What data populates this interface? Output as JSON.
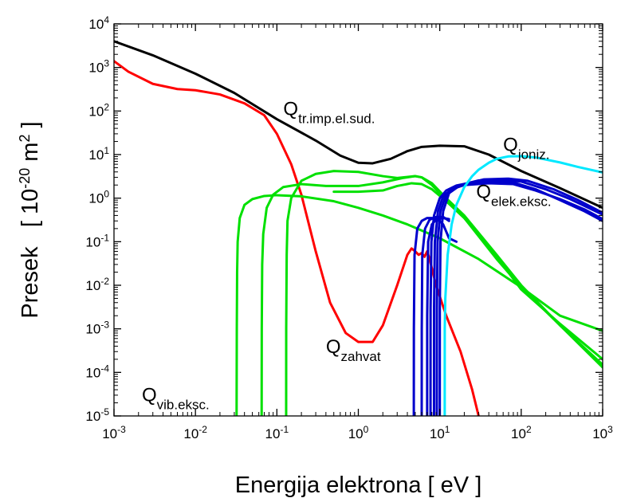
{
  "chart_data": {
    "type": "line",
    "xlabel": "Energija elektrona   [ eV ]",
    "ylabel": "Presek   [ 10^-20 m^2 ]",
    "ylabel_parts": {
      "main": "Presek",
      "open": "[ 10",
      "exp": "-20",
      "unit": " m",
      "unit_exp": "2",
      "close": " ]"
    },
    "x_scale": "log",
    "y_scale": "log",
    "xlim": [
      0.001,
      1000
    ],
    "ylim": [
      1e-05,
      10000
    ],
    "x_ticks": [
      {
        "base": "10",
        "exp": "-3",
        "value": 0.001
      },
      {
        "base": "10",
        "exp": "-2",
        "value": 0.01
      },
      {
        "base": "10",
        "exp": "-1",
        "value": 0.1
      },
      {
        "base": "10",
        "exp": "0",
        "value": 1
      },
      {
        "base": "10",
        "exp": "1",
        "value": 10
      },
      {
        "base": "10",
        "exp": "2",
        "value": 100
      },
      {
        "base": "10",
        "exp": "3",
        "value": 1000
      }
    ],
    "y_ticks": [
      {
        "base": "10",
        "exp": "-5",
        "value": 1e-05
      },
      {
        "base": "10",
        "exp": "-4",
        "value": 0.0001
      },
      {
        "base": "10",
        "exp": "-3",
        "value": 0.001
      },
      {
        "base": "10",
        "exp": "-2",
        "value": 0.01
      },
      {
        "base": "10",
        "exp": "-1",
        "value": 0.1
      },
      {
        "base": "10",
        "exp": "0",
        "value": 1
      },
      {
        "base": "10",
        "exp": "1",
        "value": 10
      },
      {
        "base": "10",
        "exp": "2",
        "value": 100
      },
      {
        "base": "10",
        "exp": "3",
        "value": 1000
      },
      {
        "base": "10",
        "exp": "4",
        "value": 10000
      }
    ],
    "grid": false,
    "annotations": [
      {
        "main": "Q",
        "sub": "tr.imp.el.sud.",
        "x": 0.12,
        "y": 80
      },
      {
        "main": "Q",
        "sub": "joniz.",
        "x": 60,
        "y": 12
      },
      {
        "main": "Q",
        "sub": "elek.eksc.",
        "x": 28,
        "y": 1.0
      },
      {
        "main": "Q",
        "sub": "zahvat",
        "x": 0.4,
        "y": 0.00028
      },
      {
        "main": "Q",
        "sub": "vib.eksc.",
        "x": 0.0022,
        "y": 2.2e-05
      }
    ],
    "series": [
      {
        "color": "#000000",
        "points": [
          [
            0.001,
            4000
          ],
          [
            0.003,
            1900
          ],
          [
            0.01,
            720
          ],
          [
            0.03,
            260
          ],
          [
            0.1,
            65
          ],
          [
            0.3,
            21
          ],
          [
            0.6,
            9.5
          ],
          [
            1,
            6.5
          ],
          [
            1.5,
            6.3
          ],
          [
            2.5,
            8
          ],
          [
            4,
            12
          ],
          [
            6,
            15
          ],
          [
            10,
            16
          ],
          [
            20,
            15.5
          ],
          [
            40,
            10
          ],
          [
            100,
            4.2
          ],
          [
            300,
            1.7
          ],
          [
            1000,
            0.6
          ]
        ]
      },
      {
        "color": "#ff0000",
        "points": [
          [
            0.001,
            1400
          ],
          [
            0.0015,
            800
          ],
          [
            0.003,
            420
          ],
          [
            0.006,
            320
          ],
          [
            0.01,
            300
          ],
          [
            0.02,
            240
          ],
          [
            0.04,
            150
          ],
          [
            0.07,
            80
          ],
          [
            0.1,
            30
          ],
          [
            0.15,
            6
          ],
          [
            0.2,
            1.2
          ],
          [
            0.3,
            0.06
          ],
          [
            0.45,
            0.004
          ],
          [
            0.7,
            0.0008
          ],
          [
            1,
            0.0005
          ],
          [
            1.5,
            0.0005
          ],
          [
            2,
            0.0012
          ],
          [
            3,
            0.01
          ],
          [
            4,
            0.05
          ],
          [
            4.5,
            0.07
          ],
          [
            5,
            0.06
          ],
          [
            5.5,
            0.05
          ],
          [
            6,
            0.055
          ],
          [
            6.5,
            0.045
          ],
          [
            7,
            0.06
          ],
          [
            7.5,
            0.04
          ],
          [
            9,
            0.01
          ],
          [
            12,
            0.002
          ],
          [
            18,
            0.0003
          ],
          [
            25,
            4e-05
          ],
          [
            30,
            1e-05
          ]
        ]
      },
      {
        "color": "#00e000",
        "points": [
          [
            0.032,
            1e-05
          ],
          [
            0.0322,
            0.001
          ],
          [
            0.0325,
            0.02
          ],
          [
            0.033,
            0.1
          ],
          [
            0.035,
            0.35
          ],
          [
            0.04,
            0.7
          ],
          [
            0.05,
            0.95
          ],
          [
            0.07,
            1.12
          ],
          [
            0.1,
            1.17
          ],
          [
            0.2,
            1.1
          ],
          [
            0.5,
            0.85
          ],
          [
            1,
            0.6
          ],
          [
            2,
            0.4
          ],
          [
            4,
            0.25
          ],
          [
            10,
            0.12
          ],
          [
            30,
            0.04
          ],
          [
            100,
            0.009
          ],
          [
            300,
            0.002
          ],
          [
            1000,
            0.0009
          ]
        ]
      },
      {
        "color": "#00e000",
        "points": [
          [
            0.065,
            1e-05
          ],
          [
            0.0652,
            0.001
          ],
          [
            0.066,
            0.03
          ],
          [
            0.068,
            0.15
          ],
          [
            0.075,
            0.6
          ],
          [
            0.09,
            1.2
          ],
          [
            0.12,
            1.8
          ],
          [
            0.2,
            2.1
          ],
          [
            0.4,
            1.9
          ],
          [
            1,
            1.9
          ],
          [
            2,
            2.3
          ],
          [
            3.5,
            2.9
          ],
          [
            5,
            3.2
          ],
          [
            6,
            3
          ],
          [
            8,
            2.2
          ],
          [
            12,
            1.0
          ],
          [
            20,
            0.4
          ],
          [
            50,
            0.05
          ],
          [
            100,
            0.01
          ],
          [
            300,
            0.0012
          ],
          [
            1000,
            0.00015
          ]
        ]
      },
      {
        "color": "#00e000",
        "points": [
          [
            0.13,
            1e-05
          ],
          [
            0.1302,
            0.001
          ],
          [
            0.132,
            0.05
          ],
          [
            0.135,
            0.3
          ],
          [
            0.15,
            1.0
          ],
          [
            0.2,
            2.5
          ],
          [
            0.3,
            3.6
          ],
          [
            0.5,
            4.2
          ],
          [
            1,
            4.0
          ],
          [
            2,
            3.2
          ],
          [
            3,
            2.9
          ],
          [
            5,
            3.2
          ],
          [
            6,
            3.0
          ],
          [
            8,
            2.0
          ],
          [
            12,
            0.9
          ],
          [
            20,
            0.35
          ],
          [
            50,
            0.04
          ],
          [
            100,
            0.009
          ],
          [
            300,
            0.0012
          ],
          [
            1000,
            0.00013
          ]
        ]
      },
      {
        "color": "#00e000",
        "points": [
          [
            0.5,
            1.4
          ],
          [
            1,
            1.4
          ],
          [
            2,
            1.5
          ],
          [
            3,
            1.9
          ],
          [
            4.5,
            2.2
          ],
          [
            6,
            2.1
          ],
          [
            8,
            1.6
          ],
          [
            12,
            0.85
          ],
          [
            20,
            0.35
          ],
          [
            40,
            0.08
          ],
          [
            100,
            0.008
          ],
          [
            300,
            0.0013
          ],
          [
            1000,
            0.0002
          ]
        ]
      },
      {
        "color": "#0000cc",
        "points": [
          [
            4.8,
            1e-05
          ],
          [
            4.81,
            0.001
          ],
          [
            4.9,
            0.05
          ],
          [
            5.3,
            0.2
          ],
          [
            6,
            0.3
          ],
          [
            7,
            0.35
          ],
          [
            8,
            0.35
          ],
          [
            10,
            0.3
          ],
          [
            11,
            0.25
          ],
          [
            13,
            0.12
          ],
          [
            16,
            0.1
          ]
        ]
      },
      {
        "color": "#0000cc",
        "points": [
          [
            6.0,
            1e-05
          ],
          [
            6.01,
            0.001
          ],
          [
            6.1,
            0.05
          ],
          [
            6.6,
            0.2
          ],
          [
            7.5,
            0.32
          ],
          [
            9,
            0.37
          ],
          [
            11,
            0.37
          ],
          [
            13,
            0.3
          ]
        ]
      },
      {
        "color": "#0000cc",
        "points": [
          [
            7.0,
            1e-05
          ],
          [
            7.01,
            0.002
          ],
          [
            7.2,
            0.1
          ],
          [
            8,
            0.25
          ],
          [
            9,
            0.32
          ],
          [
            11,
            0.35
          ],
          [
            13,
            0.33
          ]
        ]
      },
      {
        "color": "#0000cc",
        "points": [
          [
            7.7,
            1e-05
          ],
          [
            7.71,
            0.003
          ],
          [
            7.9,
            0.1
          ],
          [
            8.5,
            0.4
          ],
          [
            10,
            1.0
          ],
          [
            12,
            1.5
          ],
          [
            16,
            1.95
          ],
          [
            25,
            2.3
          ],
          [
            50,
            2.45
          ],
          [
            80,
            2.3
          ],
          [
            150,
            1.6
          ],
          [
            300,
            0.9
          ],
          [
            600,
            0.5
          ],
          [
            1000,
            0.3
          ]
        ]
      },
      {
        "color": "#0000cc",
        "points": [
          [
            8.5,
            1e-05
          ],
          [
            8.51,
            0.003
          ],
          [
            8.7,
            0.1
          ],
          [
            9.5,
            0.5
          ],
          [
            11,
            1.1
          ],
          [
            14,
            1.6
          ],
          [
            20,
            2.0
          ],
          [
            40,
            2.2
          ],
          [
            80,
            2.1
          ],
          [
            150,
            1.5
          ],
          [
            300,
            0.95
          ],
          [
            600,
            0.55
          ],
          [
            1000,
            0.33
          ]
        ]
      },
      {
        "color": "#0000cc",
        "points": [
          [
            9.2,
            1e-05
          ],
          [
            9.21,
            0.003
          ],
          [
            9.4,
            0.1
          ],
          [
            10.2,
            0.5
          ],
          [
            12,
            1.2
          ],
          [
            16,
            1.9
          ],
          [
            30,
            2.55
          ],
          [
            60,
            2.65
          ],
          [
            100,
            2.4
          ],
          [
            200,
            1.6
          ],
          [
            400,
            0.95
          ],
          [
            1000,
            0.42
          ]
        ]
      },
      {
        "color": "#0000cc",
        "points": [
          [
            10,
            1e-05
          ],
          [
            10.01,
            0.003
          ],
          [
            10.2,
            0.1
          ],
          [
            11,
            0.5
          ],
          [
            13,
            1.3
          ],
          [
            18,
            2.0
          ],
          [
            35,
            2.7
          ],
          [
            70,
            2.8
          ],
          [
            120,
            2.5
          ],
          [
            250,
            1.6
          ],
          [
            500,
            0.9
          ],
          [
            1000,
            0.46
          ]
        ]
      },
      {
        "color": "#00e8ff",
        "points": [
          [
            11.5,
            1e-05
          ],
          [
            11.51,
            0.001
          ],
          [
            11.7,
            0.005
          ],
          [
            12.5,
            0.05
          ],
          [
            14,
            0.25
          ],
          [
            16,
            0.7
          ],
          [
            20,
            1.8
          ],
          [
            25,
            3.2
          ],
          [
            30,
            4.5
          ],
          [
            40,
            6.5
          ],
          [
            50,
            8
          ],
          [
            70,
            9.1
          ],
          [
            100,
            9.2
          ],
          [
            150,
            8.6
          ],
          [
            300,
            6.6
          ],
          [
            500,
            5.2
          ],
          [
            1000,
            3.9
          ]
        ]
      }
    ]
  }
}
